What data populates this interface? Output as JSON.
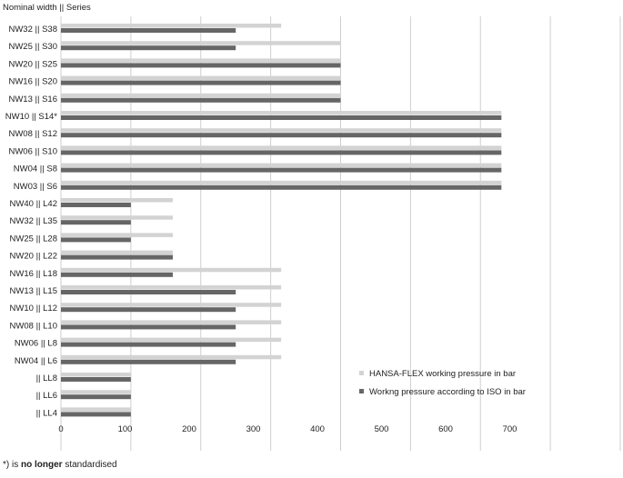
{
  "header": {
    "label": "Nominal width || Series"
  },
  "footnote": {
    "prefix": "*) is ",
    "bold": "no longer",
    "suffix": " standardised"
  },
  "chart_data": {
    "type": "bar",
    "orientation": "horizontal",
    "title": "",
    "xlabel": "",
    "ylabel": "Nominal width || Series",
    "xlim": [
      0,
      800
    ],
    "xticks": [
      0,
      100,
      200,
      300,
      400,
      500,
      600,
      700
    ],
    "grid": true,
    "legend_position": "bottom-right",
    "categories": [
      "NW32 || S38",
      "NW25 || S30",
      "NW20 || S25",
      "NW16 || S20",
      "NW13 || S16",
      "NW10 || S14*",
      "NW08 || S12",
      "NW06 || S10",
      "NW04 || S8",
      "NW03 || S6",
      "NW40 || L42",
      "NW32 || L35",
      "NW25 || L28",
      "NW20 || L22",
      "NW16 || L18",
      "NW13 || L15",
      "NW10 || L12",
      "NW08 || L10",
      "NW06 || L8",
      "NW04 || L6",
      "|| LL8",
      "|| LL6",
      "|| LL4"
    ],
    "series": [
      {
        "name": "HANSA-FLEX working pressure in bar",
        "color": "#d3d3d3",
        "values": [
          315,
          400,
          400,
          400,
          400,
          630,
          630,
          630,
          630,
          630,
          160,
          160,
          160,
          160,
          315,
          315,
          315,
          315,
          315,
          315,
          100,
          100,
          100
        ]
      },
      {
        "name": "Workng pressure according to ISO in bar",
        "color": "#666666",
        "values": [
          250,
          250,
          400,
          400,
          400,
          630,
          630,
          630,
          630,
          630,
          100,
          100,
          100,
          160,
          160,
          250,
          250,
          250,
          250,
          250,
          100,
          100,
          100
        ]
      }
    ]
  }
}
